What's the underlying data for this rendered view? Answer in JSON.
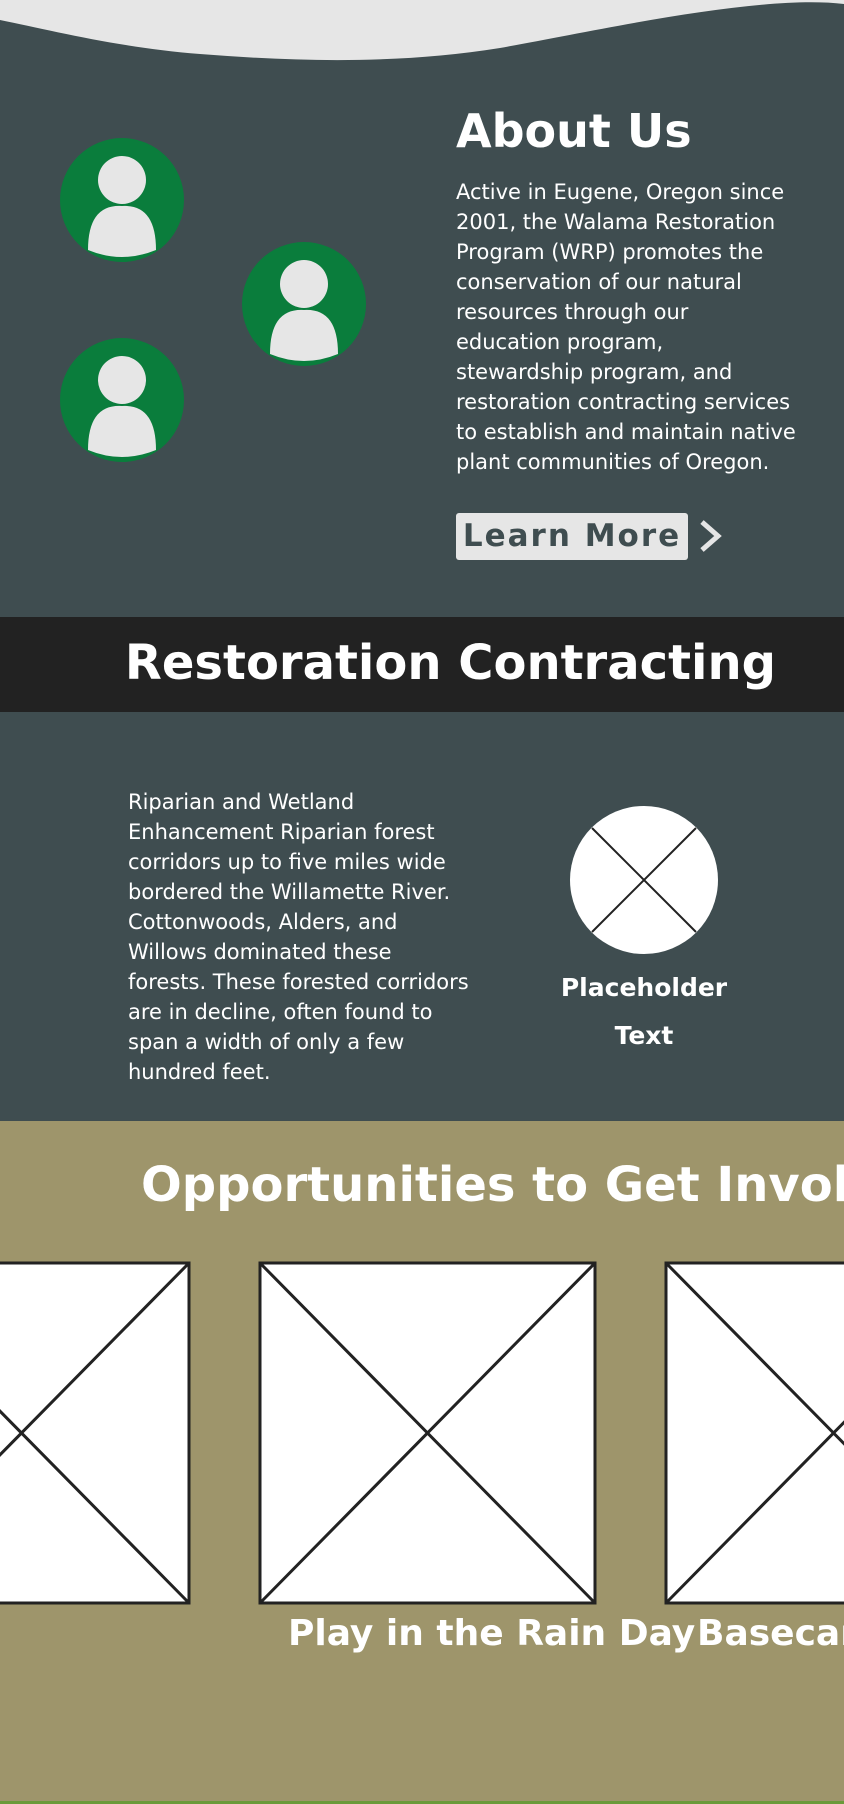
{
  "about": {
    "title": "About Us",
    "body": "Active in Eugene, Oregon since 2001, the Walama Restoration Program (WRP) promotes the conservation of our natural resources through our education program, stewardship program, and restoration contracting services to establish and maintain native plant communities of Oregon.",
    "button": "Learn More"
  },
  "contracting": {
    "title": "Restoration Contracting",
    "body": "Riparian and Wetland Enhancement Riparian forest corridors up to five miles wide bordered the Willamette River. Cottonwoods, Alders, and Willows dominated these forests. These forested corridors are in decline, often found to span a width of only a few hundred feet.",
    "placeholder": "Placeholder Text"
  },
  "opportunities": {
    "title": "Opportunities to Get Involved",
    "cards": [
      "Play in the Rain Day",
      "Basecamp"
    ]
  }
}
